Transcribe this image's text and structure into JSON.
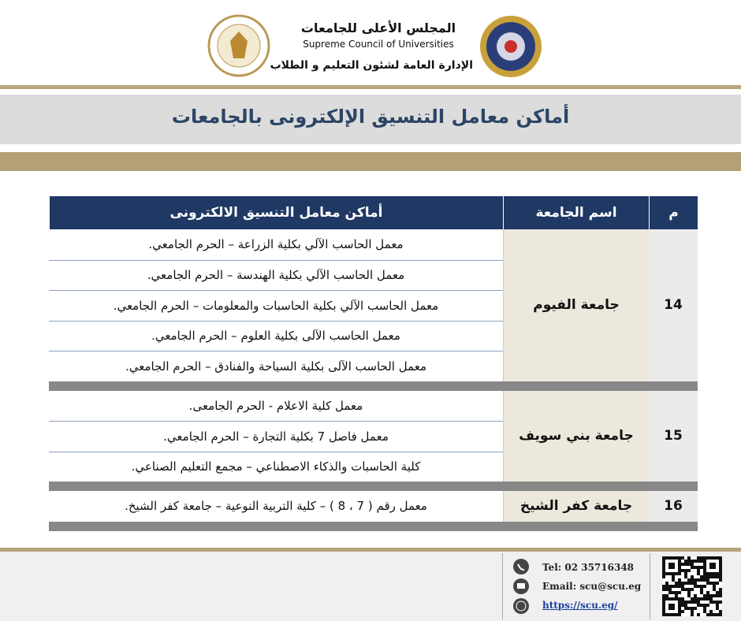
{
  "header": {
    "council_ar": "المجلس الأعلى للجامعات",
    "council_en": "Supreme Council of Universities",
    "department": "الإدارة العامة لشئون التعليم و الطلاب"
  },
  "title": "أماكن معامل التنسيق الإلكترونى بالجامعات",
  "table": {
    "headers": [
      "م",
      "اسم الجامعة",
      "أماكن معامل التنسيق الالكترونى"
    ],
    "rows": [
      {
        "number": "14",
        "university": "جامعة الفيوم",
        "locations": [
          "معمل الحاسب الآلي بكلية الزراعة – الحرم الجامعي.",
          "معمل الحاسب الآلي بكلية الهندسة – الحرم الجامعي.",
          "معمل الحاسب الآلي بكلية الحاسبات والمعلومات – الحرم الجامعي.",
          "معمل الحاسب الآلى بكلية العلوم – الحرم الجامعي.",
          "معمل الحاسب الآلى  بكلية السياحة والفنادق – الحرم الجامعي."
        ]
      },
      {
        "number": "15",
        "university": "جامعة بني سويف",
        "locations": [
          "معمل كلية الاعلام  - الحرم الجامعى.",
          "معمل فاصل 7 بكلية التجارة – الحرم الجامعي.",
          "كلية الحاسبات والذكاء الاصطناعي – مجمع التعليم الصناعي."
        ]
      },
      {
        "number": "16",
        "university": "جامعة كفر الشيخ",
        "locations": [
          "معمل رقم ( 7 ، 8 ) – كلية التربية النوعية – جامعة كفر الشيخ."
        ]
      }
    ]
  },
  "footer": {
    "tel": "Tel: 02 35716348",
    "email": "Email:  scu@scu.eg",
    "url": "https://scu.eg/"
  }
}
